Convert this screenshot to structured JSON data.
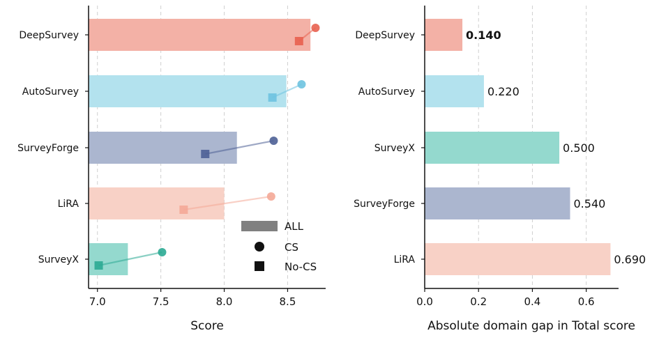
{
  "chart_data": [
    {
      "type": "bar",
      "orientation": "horizontal",
      "xlabel": "Score",
      "ylabel": "",
      "xlim": [
        6.93,
        8.8
      ],
      "xticks": [
        7.0,
        7.5,
        8.0,
        8.5
      ],
      "grid": "vertical dashed",
      "categories": [
        "DeepSurvey",
        "AutoSurvey",
        "SurveyForge",
        "LiRA",
        "SurveyX"
      ],
      "colors": [
        "#f3b1a6",
        "#b3e2ee",
        "#abb6cf",
        "#f8d1c6",
        "#94d9ce"
      ],
      "marker_colors": [
        "#e8604f",
        "#6ec3e0",
        "#4e6096",
        "#f4a997",
        "#2baa94"
      ],
      "series": [
        {
          "name": "ALL",
          "values": [
            8.68,
            8.49,
            8.1,
            8.0,
            7.24
          ]
        },
        {
          "name": "CS",
          "values": [
            8.72,
            8.61,
            8.39,
            8.37,
            7.51
          ]
        },
        {
          "name": "No-CS",
          "values": [
            8.59,
            8.38,
            7.85,
            7.68,
            7.01
          ]
        }
      ],
      "legend": {
        "placement": "lower-right",
        "entries": [
          {
            "label": "ALL",
            "marker": "bar"
          },
          {
            "label": "CS",
            "marker": "circle"
          },
          {
            "label": "No-CS",
            "marker": "square"
          }
        ]
      }
    },
    {
      "type": "bar",
      "orientation": "horizontal",
      "xlabel": "Absolute domain gap in Total score",
      "ylabel": "",
      "xlim": [
        0,
        0.72
      ],
      "xticks": [
        0.0,
        0.2,
        0.4,
        0.6
      ],
      "grid": "vertical dashed",
      "categories": [
        "DeepSurvey",
        "AutoSurvey",
        "SurveyX",
        "SurveyForge",
        "LiRA"
      ],
      "values": [
        0.14,
        0.22,
        0.5,
        0.54,
        0.69
      ],
      "value_labels": [
        "0.140",
        "0.220",
        "0.500",
        "0.540",
        "0.690"
      ],
      "bold_label_index": 0,
      "colors": [
        "#f3b1a6",
        "#b3e2ee",
        "#94d9ce",
        "#abb6cf",
        "#f8d1c6"
      ]
    }
  ]
}
